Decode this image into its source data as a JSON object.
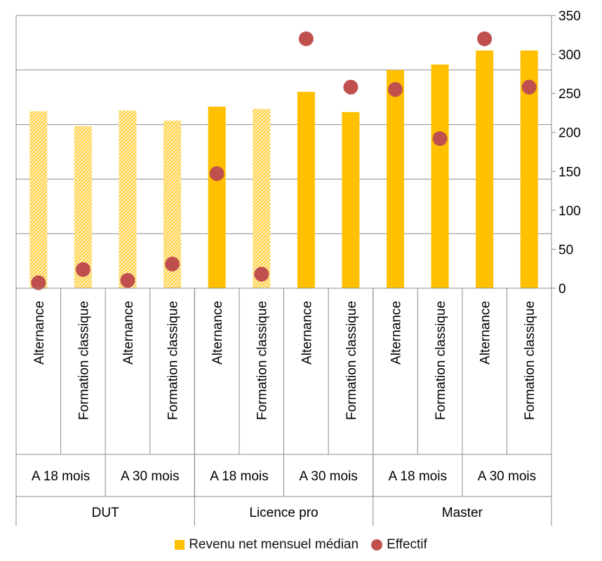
{
  "chart_data": {
    "type": "bar",
    "categories": [
      "Alternance",
      "Formation classique",
      "Alternance",
      "Formation classique",
      "Alternance",
      "Formation classique",
      "Alternance",
      "Formation classique",
      "Alternance",
      "Formation classique",
      "Alternance",
      "Formation classique"
    ],
    "subgroups": [
      {
        "label": "A 18 mois",
        "span": 2
      },
      {
        "label": "A 30 mois",
        "span": 2
      },
      {
        "label": "A 18 mois",
        "span": 2
      },
      {
        "label": "A 30 mois",
        "span": 2
      },
      {
        "label": "A 18 mois",
        "span": 2
      },
      {
        "label": "A 30 mois",
        "span": 2
      }
    ],
    "groups": [
      {
        "label": "DUT",
        "span": 4
      },
      {
        "label": "Licence pro",
        "span": 4
      },
      {
        "label": "Master",
        "span": 4
      }
    ],
    "series": [
      {
        "name": "Revenu net mensuel médian",
        "type": "bar",
        "values": [
          227,
          208,
          228,
          215,
          233,
          230,
          252,
          226,
          280,
          287,
          305,
          305
        ],
        "hatched": [
          true,
          true,
          true,
          true,
          false,
          true,
          false,
          false,
          false,
          false,
          false,
          false
        ],
        "color": "#FFC000"
      },
      {
        "name": "Effectif",
        "type": "scatter",
        "values": [
          7,
          24,
          10,
          31,
          147,
          18,
          320,
          258,
          255,
          192,
          320,
          258
        ],
        "color": "#C0504D"
      }
    ],
    "y_right": {
      "min": 0,
      "max": 350,
      "ticks": [
        0,
        50,
        100,
        150,
        200,
        250,
        300,
        350
      ]
    },
    "y_left_ticks": [
      0,
      70,
      140,
      210,
      280,
      350
    ],
    "grid": true,
    "legend_position": "bottom"
  }
}
